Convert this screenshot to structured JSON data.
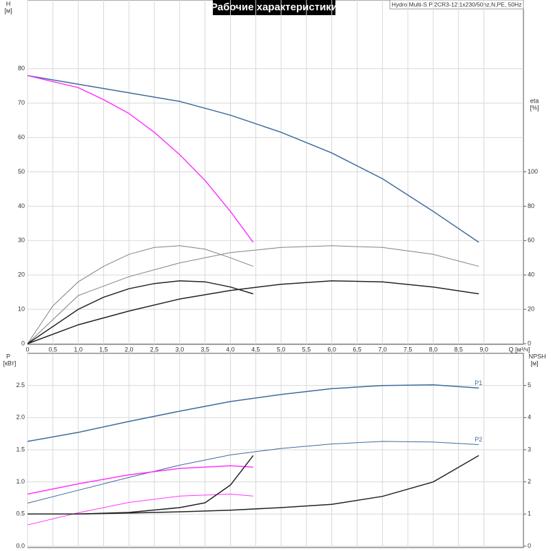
{
  "chart_data": [
    {
      "type": "line",
      "title": "Рабочие характеристики",
      "subtitle": "Hydro Multi-S P 2CR3-12 1x230/50hz,N,PE, 50Hz",
      "ylabel": "H",
      "yunit": "[м]",
      "y2label": "eta",
      "y2unit": "[%]",
      "xlabel": "Q [м³/ч]",
      "xlim": [
        0,
        9.78
      ],
      "ylim": [
        0,
        100
      ],
      "y2lim": [
        0,
        200
      ],
      "grid": true,
      "xticks": [
        0,
        {
          "value": 0.5,
          "label": "0,5"
        },
        {
          "value": 1,
          "label": "1,0"
        },
        {
          "value": 1.5,
          "label": "1,5"
        },
        {
          "value": 2,
          "label": "2,0"
        },
        {
          "value": 2.5,
          "label": "2,5"
        },
        {
          "value": 3,
          "label": "3,0"
        },
        {
          "value": 3.5,
          "label": "3,5"
        },
        {
          "value": 4,
          "label": "4,0"
        },
        {
          "value": 4.5,
          "label": "4,5"
        },
        {
          "value": 5,
          "label": "5,0"
        },
        {
          "value": 5.5,
          "label": "5,5"
        },
        {
          "value": 6,
          "label": "6,0"
        },
        {
          "value": 6.5,
          "label": "6,5"
        },
        {
          "value": 7,
          "label": "7,0"
        },
        {
          "value": 7.5,
          "label": "7,5"
        },
        {
          "value": 8,
          "label": "8,0"
        },
        {
          "value": 8.5,
          "label": "8,5"
        },
        {
          "value": 9,
          "label": "9,0"
        }
      ],
      "yticks": [
        0,
        10,
        20,
        30,
        40,
        50,
        60,
        70,
        80
      ],
      "y2ticks": [
        0,
        20,
        40,
        60,
        80,
        100
      ],
      "series": [
        {
          "color": "#3d6a9a",
          "width": 1.5,
          "x": [
            0,
            1,
            2,
            3,
            4,
            5,
            6,
            7,
            8,
            8.9
          ],
          "values": [
            78,
            75.5,
            73,
            70.5,
            66.5,
            61.5,
            55.5,
            48,
            38.5,
            29.5
          ]
        },
        {
          "color": "#ff33ff",
          "width": 1.5,
          "x": [
            0,
            1,
            1.5,
            2,
            2.5,
            3,
            3.5,
            4,
            4.45
          ],
          "values": [
            78,
            74.5,
            71,
            67,
            61.5,
            55,
            47.5,
            38.5,
            29.5
          ]
        },
        {
          "color": "#808080",
          "width": 1,
          "axis": "y2",
          "x": [
            0,
            0.5,
            1,
            1.5,
            2,
            2.5,
            3,
            3.5,
            4,
            4.45
          ],
          "values": [
            0,
            22,
            36,
            45,
            52,
            56,
            57,
            55,
            50,
            45
          ]
        },
        {
          "color": "#808080",
          "width": 1,
          "axis": "y2",
          "x": [
            0,
            1,
            2,
            3,
            4,
            5,
            6,
            7,
            8,
            8.9
          ],
          "values": [
            0,
            28,
            39,
            47,
            53,
            56,
            57,
            56,
            52,
            45
          ]
        },
        {
          "color": "#222222",
          "width": 1.5,
          "axis": "y2",
          "x": [
            0,
            1,
            1.5,
            2,
            2.5,
            3,
            3.5,
            4,
            4.45
          ],
          "values": [
            0,
            20,
            27,
            32,
            35,
            36.6,
            36,
            33,
            29
          ]
        },
        {
          "color": "#222222",
          "width": 1.5,
          "axis": "y2",
          "x": [
            0,
            1,
            2,
            3,
            4,
            5,
            6,
            7,
            8,
            8.9
          ],
          "values": [
            0,
            11,
            19,
            26,
            31,
            34.6,
            36.6,
            36,
            33,
            29
          ]
        }
      ]
    },
    {
      "type": "line",
      "ylabel": "P",
      "yunit": "[кВт]",
      "y2label": "NPSH",
      "y2unit": "[м]",
      "xlim": [
        0,
        9.78
      ],
      "ylim": [
        0,
        3
      ],
      "y2lim": [
        0,
        6
      ],
      "grid": true,
      "yticks": [
        {
          "value": 0,
          "label": "0.0"
        },
        0.5,
        {
          "value": 1,
          "label": "1.0"
        },
        1.5,
        {
          "value": 2,
          "label": "2.0"
        },
        2.5
      ],
      "y2ticks": [
        0,
        1,
        2,
        3,
        4,
        5
      ],
      "series": [
        {
          "name": "P1",
          "color": "#3d6a9a",
          "width": 1.5,
          "x": [
            0,
            1,
            2,
            3,
            4,
            5,
            6,
            7,
            8,
            8.9
          ],
          "values": [
            1.63,
            1.77,
            1.94,
            2.1,
            2.25,
            2.36,
            2.45,
            2.5,
            2.51,
            2.46
          ]
        },
        {
          "name": "P2",
          "color": "#3d6a9a",
          "width": 1,
          "x": [
            0,
            1,
            2,
            3,
            4,
            5,
            6,
            7,
            8,
            8.9
          ],
          "values": [
            0.67,
            0.87,
            1.07,
            1.26,
            1.42,
            1.52,
            1.59,
            1.63,
            1.62,
            1.58
          ]
        },
        {
          "color": "#ff33ff",
          "width": 1.5,
          "x": [
            0,
            1,
            2,
            3,
            4,
            4.45
          ],
          "values": [
            0.81,
            0.97,
            1.11,
            1.21,
            1.25,
            1.23
          ]
        },
        {
          "color": "#ff33ff",
          "width": 1,
          "x": [
            0,
            1,
            2,
            3,
            4,
            4.45
          ],
          "values": [
            0.33,
            0.52,
            0.68,
            0.78,
            0.81,
            0.78
          ]
        },
        {
          "color": "#222222",
          "width": 1.5,
          "axis": "y2",
          "x": [
            0,
            1,
            2,
            3,
            4,
            5,
            6,
            7,
            8,
            8.9
          ],
          "values": [
            1.0,
            1.0,
            1.03,
            1.07,
            1.12,
            1.2,
            1.3,
            1.55,
            2.0,
            2.82
          ]
        },
        {
          "color": "#222222",
          "width": 1.5,
          "axis": "y2",
          "x": [
            0,
            1,
            2,
            3,
            3.5,
            4,
            4.45
          ],
          "values": [
            1.0,
            1.0,
            1.05,
            1.2,
            1.35,
            1.9,
            2.82
          ]
        }
      ]
    }
  ]
}
